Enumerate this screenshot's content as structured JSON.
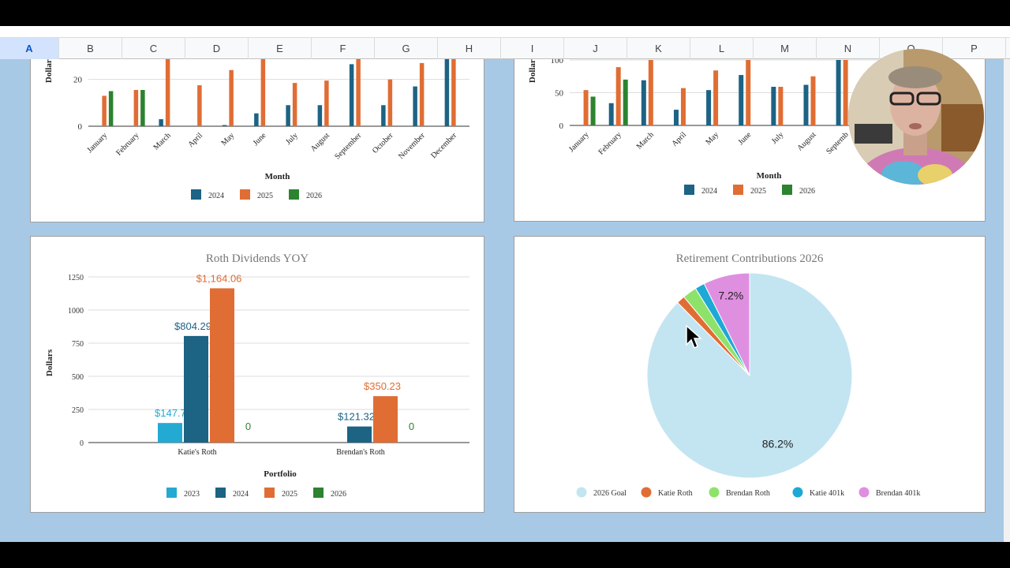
{
  "spreadsheet": {
    "columns": [
      "A",
      "B",
      "C",
      "D",
      "E",
      "F",
      "G",
      "H",
      "I",
      "J",
      "K",
      "L",
      "M",
      "N",
      "O",
      "P"
    ],
    "selected_column": "A"
  },
  "colors": {
    "sheet_background": "#a7c9e6",
    "series_2023": "#23aad3",
    "series_2024": "#1c6384",
    "series_2025": "#e06d34",
    "series_2026": "#2c8330",
    "pie_goal": "#c3e5f1",
    "pie_katie_roth": "#e06d34",
    "pie_brendan_roth": "#8de36a",
    "pie_katie_401k": "#1ea8d5",
    "pie_brendan_401k": "#df8fe0"
  },
  "chart_data": [
    {
      "id": "chart_top_left",
      "type": "bar",
      "title": "",
      "xlabel": "Month",
      "ylabel": "Dollars",
      "categories": [
        "January",
        "February",
        "March",
        "April",
        "May",
        "June",
        "July",
        "August",
        "September",
        "October",
        "November",
        "December"
      ],
      "y_ticks": [
        "0",
        "20"
      ],
      "ylim": [
        0,
        30
      ],
      "series": [
        {
          "name": "2024",
          "values": [
            null,
            null,
            3,
            null,
            0.5,
            5.5,
            9,
            9,
            26.5,
            9,
            17,
            30
          ]
        },
        {
          "name": "2025",
          "values": [
            13,
            15.5,
            30,
            17.5,
            24,
            30,
            18.5,
            19.5,
            30,
            20,
            27,
            30
          ]
        },
        {
          "name": "2026",
          "values": [
            15,
            15.5,
            null,
            null,
            null,
            null,
            null,
            null,
            null,
            null,
            null,
            null
          ]
        }
      ],
      "legend": "bottom",
      "clipped_top": true
    },
    {
      "id": "chart_top_right",
      "type": "bar",
      "title": "",
      "xlabel": "Month",
      "ylabel": "Dollars",
      "categories": [
        "January",
        "February",
        "March",
        "April",
        "May",
        "June",
        "July",
        "August",
        "Septemb"
      ],
      "y_ticks": [
        "0",
        "50",
        "100"
      ],
      "ylim": [
        0,
        100
      ],
      "series": [
        {
          "name": "2024",
          "values": [
            null,
            34,
            69,
            24,
            54,
            77,
            59,
            62,
            100
          ]
        },
        {
          "name": "2025",
          "values": [
            54,
            89,
            100,
            57,
            84,
            100,
            59,
            75,
            100
          ]
        },
        {
          "name": "2026",
          "values": [
            44,
            70,
            null,
            null,
            null,
            null,
            null,
            null,
            null
          ]
        }
      ],
      "legend": "bottom",
      "clipped_top": true
    },
    {
      "id": "chart_roth",
      "type": "bar",
      "title": "Roth Dividends YOY",
      "xlabel": "Portfolio",
      "ylabel": "Dollars",
      "categories": [
        "Katie's Roth",
        "Brendan's Roth"
      ],
      "y_ticks": [
        "0",
        "250",
        "500",
        "750",
        "1000",
        "1250"
      ],
      "ylim": [
        0,
        1250
      ],
      "series": [
        {
          "name": "2023",
          "values": [
            147.73,
            null
          ],
          "labels": [
            "$147.73",
            ""
          ]
        },
        {
          "name": "2024",
          "values": [
            804.29,
            121.32
          ],
          "labels": [
            "$804.29",
            "$121.32"
          ]
        },
        {
          "name": "2025",
          "values": [
            1164.06,
            350.23
          ],
          "labels": [
            "$1,164.06",
            "$350.23"
          ]
        },
        {
          "name": "2026",
          "values": [
            0,
            0
          ],
          "labels": [
            "0",
            "0"
          ]
        }
      ],
      "legend": "bottom"
    },
    {
      "id": "chart_retirement",
      "type": "pie",
      "title": "Retirement Contributions 2026",
      "slices": [
        {
          "name": "2026 Goal",
          "value": 86.2,
          "label": "86.2%"
        },
        {
          "name": "Katie Roth",
          "value": 1.3,
          "label": ""
        },
        {
          "name": "Brendan Roth",
          "value": 2.2,
          "label": ""
        },
        {
          "name": "Katie 401k",
          "value": 1.5,
          "label": ""
        },
        {
          "name": "Brendan 401k",
          "value": 7.2,
          "label": "7.2%"
        }
      ],
      "legend": "bottom"
    }
  ],
  "cursor": {
    "type": "arrow-pointer"
  },
  "webcam": {
    "description_icon": "presenter-webcam"
  }
}
